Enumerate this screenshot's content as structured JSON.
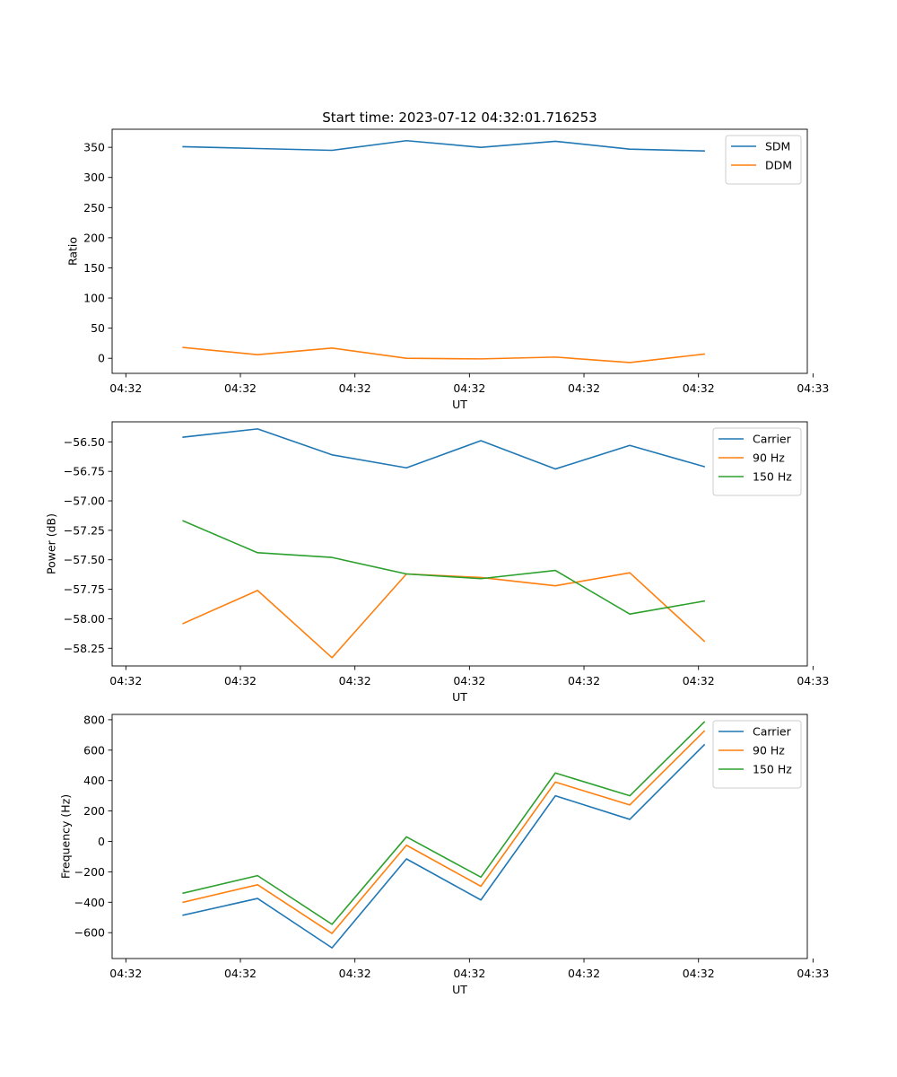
{
  "chart_data": [
    {
      "type": "line",
      "title": "Start time: 2023-07-12 04:32:01.716253",
      "xlabel": "UT",
      "ylabel": "Ratio",
      "xlim": [
        -0.12,
        5.95
      ],
      "ylim": [
        -25,
        380
      ],
      "x": [
        0.5,
        1.15,
        1.8,
        2.45,
        3.1,
        3.75,
        4.4,
        5.05
      ],
      "xticks": [
        0,
        1,
        2,
        3,
        4,
        5,
        6
      ],
      "xticklabels": [
        "04:32",
        "04:32",
        "04:32",
        "04:32",
        "04:32",
        "04:32",
        "04:33"
      ],
      "yticks": [
        0,
        50,
        100,
        150,
        200,
        250,
        300,
        350
      ],
      "yticklabels": [
        "0",
        "50",
        "100",
        "150",
        "200",
        "250",
        "300",
        "350"
      ],
      "legend": "top-right",
      "series": [
        {
          "name": "SDM",
          "color": "#1f77b4",
          "values": [
            351,
            348,
            345,
            361,
            350,
            360,
            347,
            344
          ]
        },
        {
          "name": "DDM",
          "color": "#ff7f0e",
          "values": [
            18,
            6,
            17,
            0,
            -1,
            2,
            -7,
            7
          ]
        }
      ]
    },
    {
      "type": "line",
      "title": "",
      "xlabel": "UT",
      "ylabel": "Power (dB)",
      "xlim": [
        -0.12,
        5.95
      ],
      "ylim": [
        -58.4,
        -56.33
      ],
      "x": [
        0.5,
        1.15,
        1.8,
        2.45,
        3.1,
        3.75,
        4.4,
        5.05
      ],
      "xticks": [
        0,
        1,
        2,
        3,
        4,
        5,
        6
      ],
      "xticklabels": [
        "04:32",
        "04:32",
        "04:32",
        "04:32",
        "04:32",
        "04:32",
        "04:33"
      ],
      "yticks": [
        -58.25,
        -58.0,
        -57.75,
        -57.5,
        -57.25,
        -57.0,
        -56.75,
        -56.5
      ],
      "yticklabels": [
        "−58.25",
        "−58.00",
        "−57.75",
        "−57.50",
        "−57.25",
        "−57.00",
        "−56.75",
        "−56.50"
      ],
      "legend": "top-right",
      "series": [
        {
          "name": "Carrier",
          "color": "#1f77b4",
          "values": [
            -56.46,
            -56.39,
            -56.61,
            -56.72,
            -56.49,
            -56.73,
            -56.53,
            -56.71
          ]
        },
        {
          "name": "90 Hz",
          "color": "#ff7f0e",
          "values": [
            -58.04,
            -57.76,
            -58.33,
            -57.62,
            -57.65,
            -57.72,
            -57.61,
            -58.19
          ]
        },
        {
          "name": "150 Hz",
          "color": "#2ca02c",
          "values": [
            -57.17,
            -57.44,
            -57.48,
            -57.62,
            -57.66,
            -57.59,
            -57.96,
            -57.85
          ]
        }
      ]
    },
    {
      "type": "line",
      "title": "",
      "xlabel": "UT",
      "ylabel": "Frequency (Hz)",
      "xlim": [
        -0.12,
        5.95
      ],
      "ylim": [
        -770,
        835
      ],
      "x": [
        0.5,
        1.15,
        1.8,
        2.45,
        3.1,
        3.75,
        4.4,
        5.05
      ],
      "xticks": [
        0,
        1,
        2,
        3,
        4,
        5,
        6
      ],
      "xticklabels": [
        "04:32",
        "04:32",
        "04:32",
        "04:32",
        "04:32",
        "04:32",
        "04:33"
      ],
      "yticks": [
        -600,
        -400,
        -200,
        0,
        200,
        400,
        600,
        800
      ],
      "yticklabels": [
        "−600",
        "−400",
        "−200",
        "0",
        "200",
        "400",
        "600",
        "800"
      ],
      "legend": "top-right",
      "series": [
        {
          "name": "Carrier",
          "color": "#1f77b4",
          "values": [
            -485,
            -375,
            -700,
            -115,
            -385,
            300,
            145,
            635
          ]
        },
        {
          "name": "90 Hz",
          "color": "#ff7f0e",
          "values": [
            -400,
            -285,
            -605,
            -25,
            -295,
            390,
            240,
            725
          ]
        },
        {
          "name": "150 Hz",
          "color": "#2ca02c",
          "values": [
            -340,
            -225,
            -545,
            30,
            -235,
            450,
            300,
            785
          ]
        }
      ]
    }
  ]
}
